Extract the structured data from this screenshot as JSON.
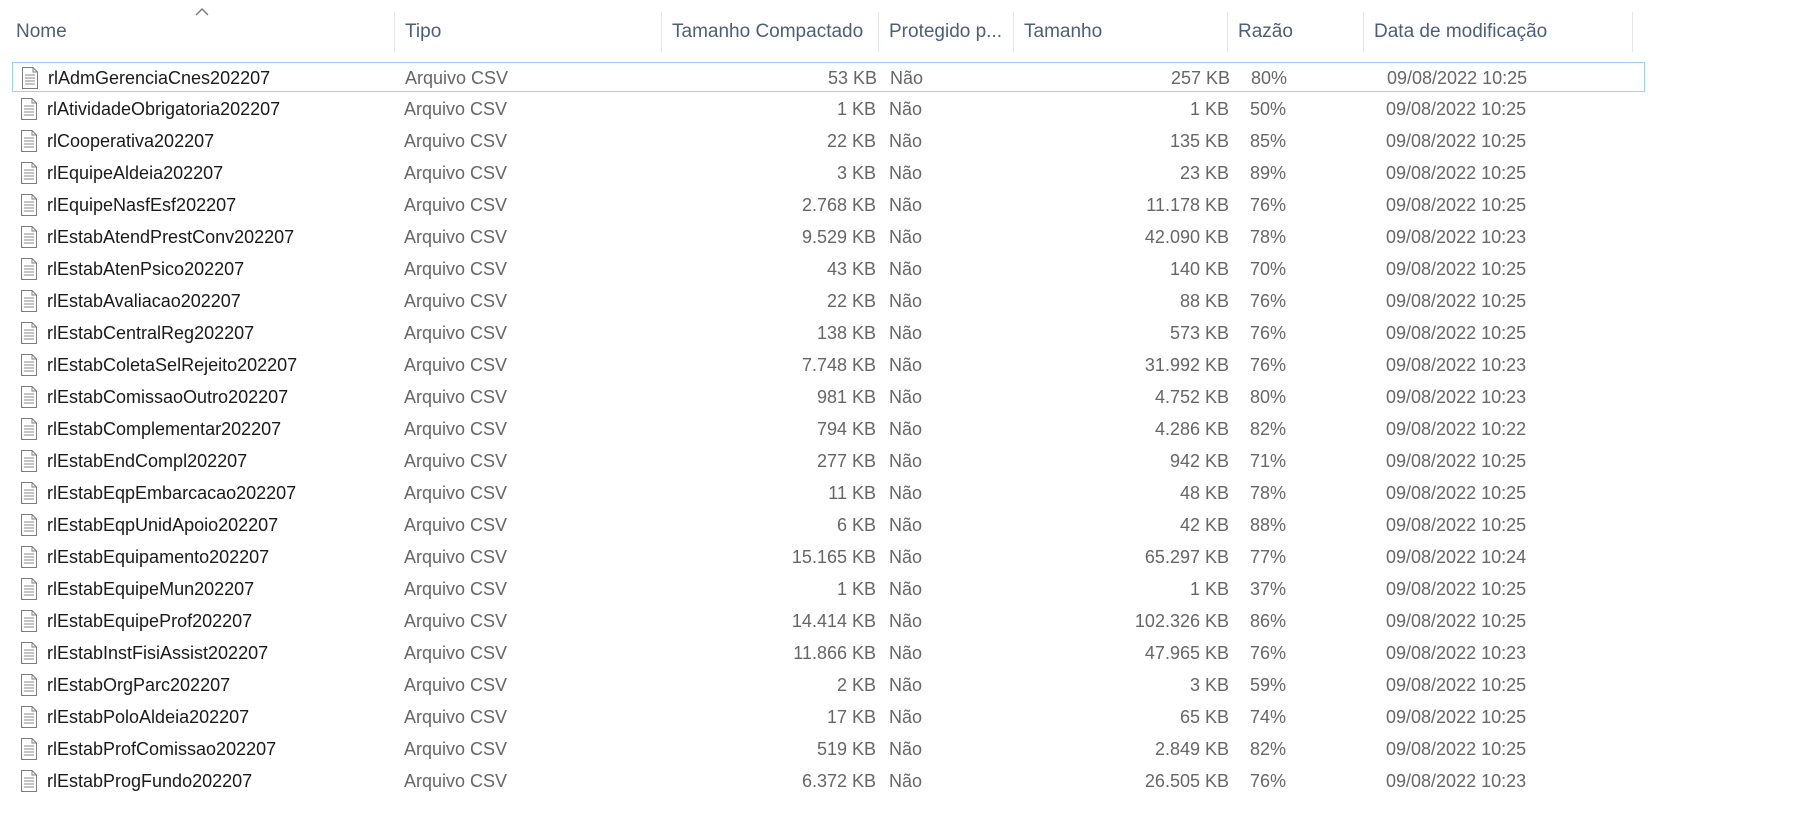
{
  "columns": {
    "name": "Nome",
    "type": "Tipo",
    "compressed": "Tamanho Compactado",
    "protected": "Protegido p...",
    "size": "Tamanho",
    "ratio": "Razão",
    "modified": "Data de modificação"
  },
  "sort": {
    "column": "Nome",
    "direction": "ascending",
    "icon": "sort-ascending-icon"
  },
  "file_icon": "document-icon",
  "colors": {
    "header_text": "#4c5f7a",
    "muted_text": "#666666",
    "selection_border": "#99d1ff"
  },
  "rows": [
    {
      "name": "rlAdmGerenciaCnes202207",
      "type": "Arquivo CSV",
      "compressed": "53 KB",
      "protected": "Não",
      "size": "257 KB",
      "ratio": "80%",
      "modified": "09/08/2022 10:25",
      "selected": true
    },
    {
      "name": "rlAtividadeObrigatoria202207",
      "type": "Arquivo CSV",
      "compressed": "1 KB",
      "protected": "Não",
      "size": "1 KB",
      "ratio": "50%",
      "modified": "09/08/2022 10:25"
    },
    {
      "name": "rlCooperativa202207",
      "type": "Arquivo CSV",
      "compressed": "22 KB",
      "protected": "Não",
      "size": "135 KB",
      "ratio": "85%",
      "modified": "09/08/2022 10:25"
    },
    {
      "name": "rlEquipeAldeia202207",
      "type": "Arquivo CSV",
      "compressed": "3 KB",
      "protected": "Não",
      "size": "23 KB",
      "ratio": "89%",
      "modified": "09/08/2022 10:25"
    },
    {
      "name": "rlEquipeNasfEsf202207",
      "type": "Arquivo CSV",
      "compressed": "2.768 KB",
      "protected": "Não",
      "size": "11.178 KB",
      "ratio": "76%",
      "modified": "09/08/2022 10:25"
    },
    {
      "name": "rlEstabAtendPrestConv202207",
      "type": "Arquivo CSV",
      "compressed": "9.529 KB",
      "protected": "Não",
      "size": "42.090 KB",
      "ratio": "78%",
      "modified": "09/08/2022 10:23"
    },
    {
      "name": "rlEstabAtenPsico202207",
      "type": "Arquivo CSV",
      "compressed": "43 KB",
      "protected": "Não",
      "size": "140 KB",
      "ratio": "70%",
      "modified": "09/08/2022 10:25"
    },
    {
      "name": "rlEstabAvaliacao202207",
      "type": "Arquivo CSV",
      "compressed": "22 KB",
      "protected": "Não",
      "size": "88 KB",
      "ratio": "76%",
      "modified": "09/08/2022 10:25"
    },
    {
      "name": "rlEstabCentralReg202207",
      "type": "Arquivo CSV",
      "compressed": "138 KB",
      "protected": "Não",
      "size": "573 KB",
      "ratio": "76%",
      "modified": "09/08/2022 10:25"
    },
    {
      "name": "rlEstabColetaSelRejeito202207",
      "type": "Arquivo CSV",
      "compressed": "7.748 KB",
      "protected": "Não",
      "size": "31.992 KB",
      "ratio": "76%",
      "modified": "09/08/2022 10:23"
    },
    {
      "name": "rlEstabComissaoOutro202207",
      "type": "Arquivo CSV",
      "compressed": "981 KB",
      "protected": "Não",
      "size": "4.752 KB",
      "ratio": "80%",
      "modified": "09/08/2022 10:23"
    },
    {
      "name": "rlEstabComplementar202207",
      "type": "Arquivo CSV",
      "compressed": "794 KB",
      "protected": "Não",
      "size": "4.286 KB",
      "ratio": "82%",
      "modified": "09/08/2022 10:22"
    },
    {
      "name": "rlEstabEndCompl202207",
      "type": "Arquivo CSV",
      "compressed": "277 KB",
      "protected": "Não",
      "size": "942 KB",
      "ratio": "71%",
      "modified": "09/08/2022 10:25"
    },
    {
      "name": "rlEstabEqpEmbarcacao202207",
      "type": "Arquivo CSV",
      "compressed": "11 KB",
      "protected": "Não",
      "size": "48 KB",
      "ratio": "78%",
      "modified": "09/08/2022 10:25"
    },
    {
      "name": "rlEstabEqpUnidApoio202207",
      "type": "Arquivo CSV",
      "compressed": "6 KB",
      "protected": "Não",
      "size": "42 KB",
      "ratio": "88%",
      "modified": "09/08/2022 10:25"
    },
    {
      "name": "rlEstabEquipamento202207",
      "type": "Arquivo CSV",
      "compressed": "15.165 KB",
      "protected": "Não",
      "size": "65.297 KB",
      "ratio": "77%",
      "modified": "09/08/2022 10:24"
    },
    {
      "name": "rlEstabEquipeMun202207",
      "type": "Arquivo CSV",
      "compressed": "1 KB",
      "protected": "Não",
      "size": "1 KB",
      "ratio": "37%",
      "modified": "09/08/2022 10:25"
    },
    {
      "name": "rlEstabEquipeProf202207",
      "type": "Arquivo CSV",
      "compressed": "14.414 KB",
      "protected": "Não",
      "size": "102.326 KB",
      "ratio": "86%",
      "modified": "09/08/2022 10:25"
    },
    {
      "name": "rlEstabInstFisiAssist202207",
      "type": "Arquivo CSV",
      "compressed": "11.866 KB",
      "protected": "Não",
      "size": "47.965 KB",
      "ratio": "76%",
      "modified": "09/08/2022 10:23"
    },
    {
      "name": "rlEstabOrgParc202207",
      "type": "Arquivo CSV",
      "compressed": "2 KB",
      "protected": "Não",
      "size": "3 KB",
      "ratio": "59%",
      "modified": "09/08/2022 10:25"
    },
    {
      "name": "rlEstabPoloAldeia202207",
      "type": "Arquivo CSV",
      "compressed": "17 KB",
      "protected": "Não",
      "size": "65 KB",
      "ratio": "74%",
      "modified": "09/08/2022 10:25"
    },
    {
      "name": "rlEstabProfComissao202207",
      "type": "Arquivo CSV",
      "compressed": "519 KB",
      "protected": "Não",
      "size": "2.849 KB",
      "ratio": "82%",
      "modified": "09/08/2022 10:25"
    },
    {
      "name": "rlEstabProgFundo202207",
      "type": "Arquivo CSV",
      "compressed": "6.372 KB",
      "protected": "Não",
      "size": "26.505 KB",
      "ratio": "76%",
      "modified": "09/08/2022 10:23"
    }
  ]
}
